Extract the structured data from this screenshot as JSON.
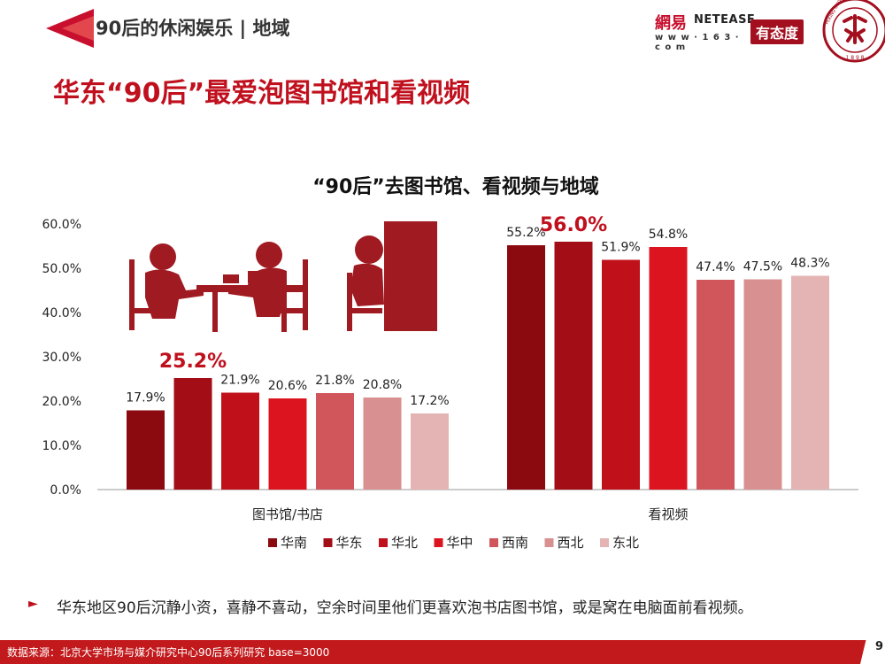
{
  "header": {
    "section_title": "90后的休闲娱乐 | 地域",
    "logo_netease_cn": "網易",
    "logo_netease_en": "NETEASE",
    "logo_netease_url": "w w w · 1 6 3 · c o m",
    "logo_youtaidu": "有态度",
    "seal_year": "1 8 9 8",
    "seal_arc": "PEKING UNIVERSITY"
  },
  "slide_title": "华东“90后”最爱泡图书馆和看视频",
  "note": {
    "bullet": "►",
    "text": "华东地区90后沉静小资，喜静不喜动，空余时间里他们更喜欢泡书店图书馆，或是窝在电脑面前看视频。"
  },
  "footer": {
    "source": "数据来源：北京大学市场与媒介研究中心90后系列研究 base=3000",
    "page": "9"
  },
  "chart_data": {
    "type": "bar",
    "title": "“90后”去图书馆、看视频与地域",
    "categories": [
      "图书馆/书店",
      "看视频"
    ],
    "series": [
      {
        "name": "华南",
        "values": [
          17.9,
          55.2
        ],
        "color": "#8b0a10"
      },
      {
        "name": "华东",
        "values": [
          25.2,
          56.0
        ],
        "color": "#a30d15"
      },
      {
        "name": "华北",
        "values": [
          21.9,
          51.9
        ],
        "color": "#c0111b"
      },
      {
        "name": "华中",
        "values": [
          20.6,
          54.8
        ],
        "color": "#dc141f"
      },
      {
        "name": "西南",
        "values": [
          21.8,
          47.4
        ],
        "color": "#d0565c"
      },
      {
        "name": "西北",
        "values": [
          20.8,
          47.5
        ],
        "color": "#d89090"
      },
      {
        "name": "东北",
        "values": [
          17.2,
          48.3
        ],
        "color": "#e4b4b4"
      }
    ],
    "data_labels": [
      [
        "17.9%",
        "55.2%"
      ],
      [
        "25.2%",
        "56.0%"
      ],
      [
        "21.9%",
        "51.9%"
      ],
      [
        "20.6%",
        "54.8%"
      ],
      [
        "21.8%",
        "47.4%"
      ],
      [
        "20.8%",
        "47.5%"
      ],
      [
        "17.2%",
        "48.3%"
      ]
    ],
    "highlight_series": "华东",
    "highlight_color": "#c0101e",
    "y_ticks": [
      "0.0%",
      "10.0%",
      "20.0%",
      "30.0%",
      "40.0%",
      "50.0%",
      "60.0%"
    ],
    "ylim": [
      0,
      60
    ],
    "grid": false,
    "legend_position": "bottom"
  }
}
